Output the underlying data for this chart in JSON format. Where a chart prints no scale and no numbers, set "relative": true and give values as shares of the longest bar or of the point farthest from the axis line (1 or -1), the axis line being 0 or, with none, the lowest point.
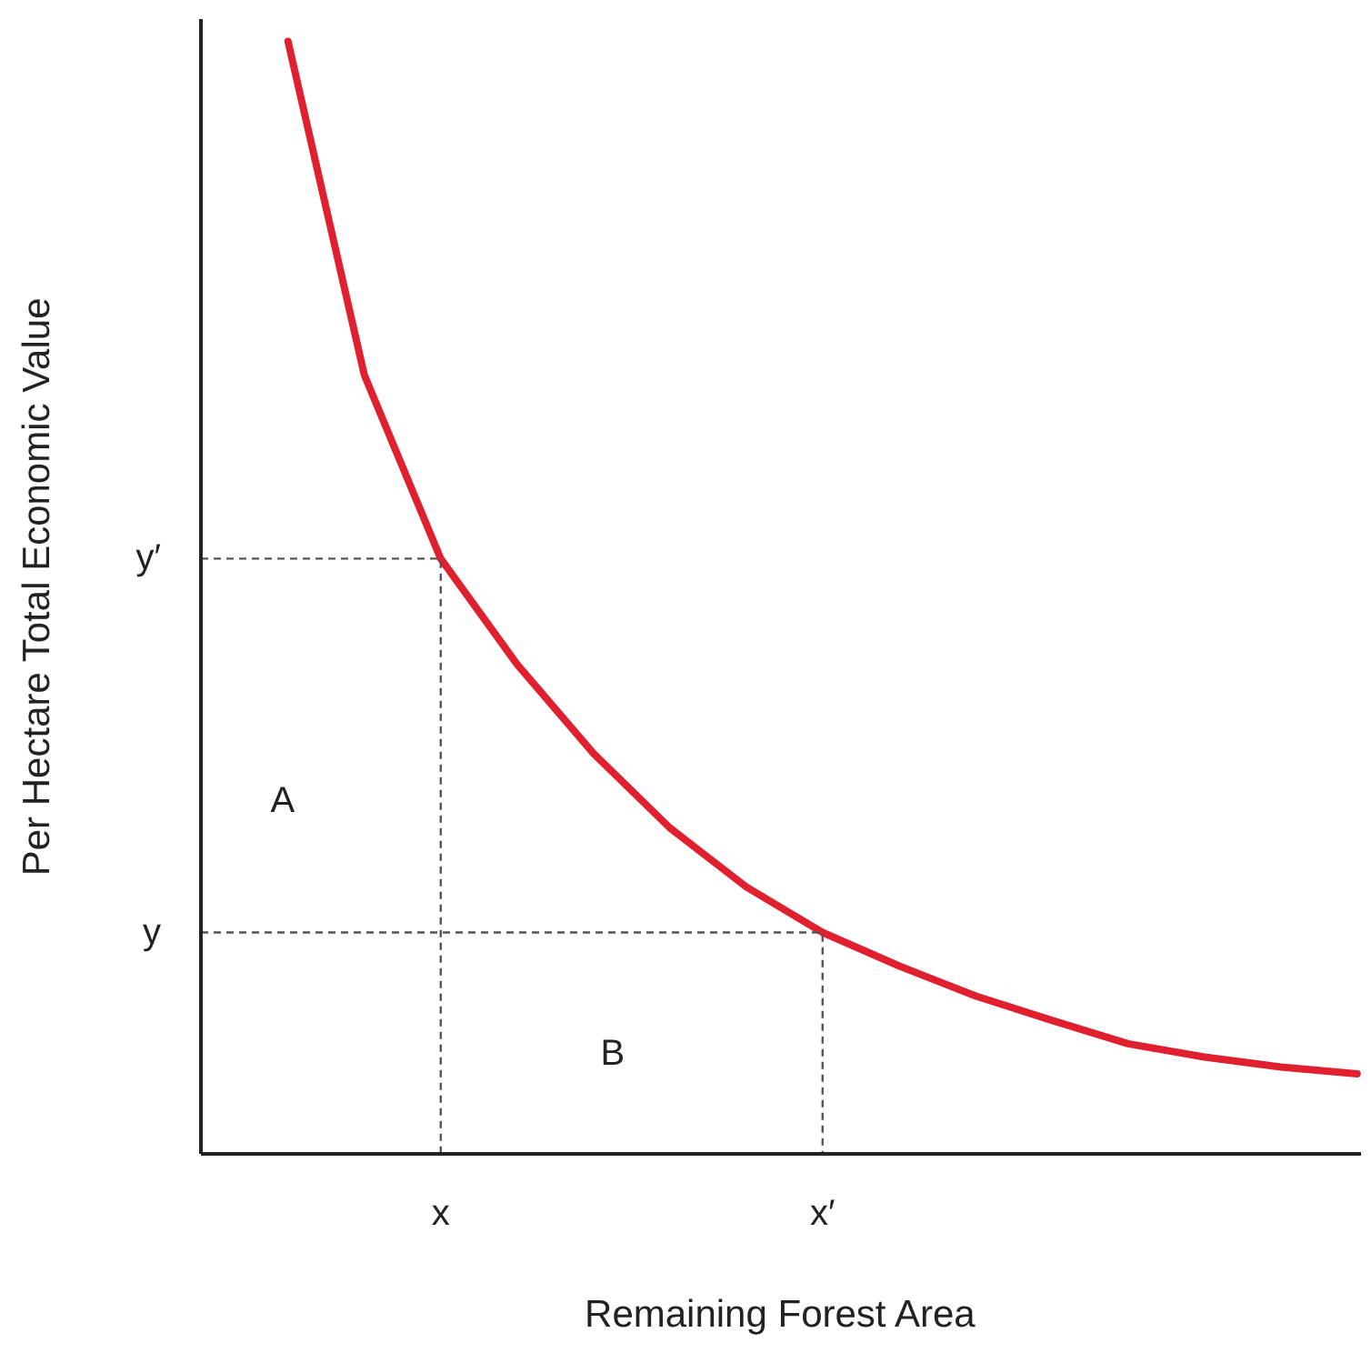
{
  "chart_data": {
    "type": "line",
    "xlabel": "Remaining Forest Area",
    "ylabel": "Per Hectare Total Economic Value",
    "relative": true,
    "grid": false,
    "marker": "none",
    "categories": [
      null,
      null,
      "x",
      null,
      null,
      null,
      null,
      "x′",
      null,
      null,
      null,
      null,
      null,
      null,
      null
    ],
    "series": [
      {
        "color": "#e0202e",
        "values": [
          1,
          0.7,
          0.535,
          0.44,
          0.36,
          0.293,
          0.24,
          0.199,
          0.169,
          0.142,
          0.12,
          0.099,
          0.087,
          0.078,
          0.072
        ]
      }
    ],
    "ref_lines": [
      {
        "axis": "y",
        "value": 0.535,
        "label": "y′",
        "color": "#555555",
        "line_style": "dashed"
      },
      {
        "axis": "y",
        "value": 0.199,
        "label": "y",
        "color": "#555555",
        "line_style": "dashed"
      }
    ],
    "annotations": [
      "A",
      "B"
    ]
  }
}
